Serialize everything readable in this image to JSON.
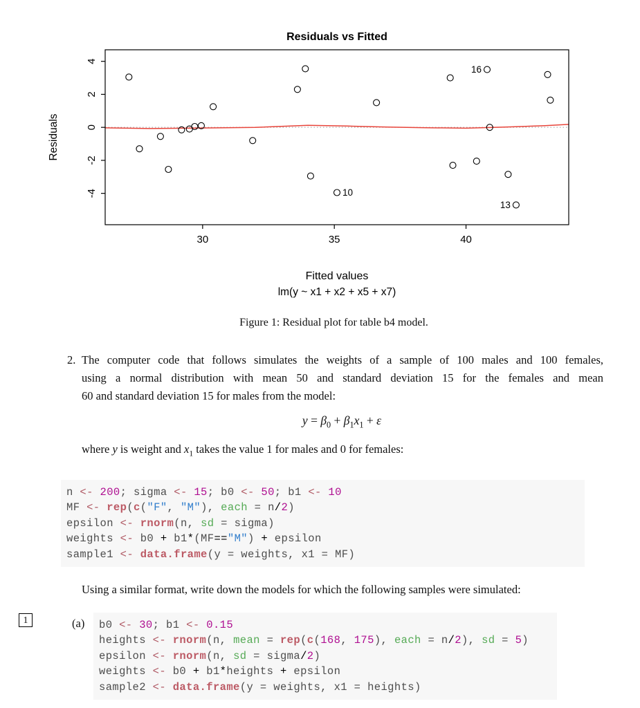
{
  "colors": {
    "text": "#111111",
    "std": "#4d4d4d",
    "num": "#AF0F91",
    "str": "#317ECC",
    "fun": "#BC5A65",
    "arg": "#55AA55",
    "kwb": "#B05A65",
    "opt": "#000000",
    "code_bg": "#F7F7F7"
  },
  "figure": {
    "caption": "Figure 1: Residual plot for table b4 model."
  },
  "chart_data": {
    "type": "scatter",
    "title": "Residuals vs Fitted",
    "xlabel": "Fitted values",
    "sublabel": "lm(y ~ x1 + x2 + x5 + x7)",
    "ylabel": "Residuals",
    "xlim": [
      26.3,
      43.9
    ],
    "ylim": [
      -5.9,
      4.7
    ],
    "xticks": [
      30,
      35,
      40
    ],
    "yticks": [
      -4,
      -2,
      0,
      2,
      4
    ],
    "grid": false,
    "legend": "none",
    "points": [
      [
        27.2,
        3.05
      ],
      [
        27.6,
        -1.3
      ],
      [
        28.4,
        -0.55
      ],
      [
        28.7,
        -2.55
      ],
      [
        29.2,
        -0.15
      ],
      [
        29.5,
        -0.1
      ],
      [
        29.7,
        0.05
      ],
      [
        29.95,
        0.1
      ],
      [
        30.4,
        1.25
      ],
      [
        31.9,
        -0.8
      ],
      [
        33.6,
        2.3
      ],
      [
        33.9,
        3.55
      ],
      [
        34.1,
        -2.95
      ],
      [
        35.1,
        -3.95
      ],
      [
        36.6,
        1.5
      ],
      [
        39.4,
        3.0
      ],
      [
        39.5,
        -2.3
      ],
      [
        40.4,
        -2.05
      ],
      [
        40.8,
        3.5
      ],
      [
        40.9,
        0.0
      ],
      [
        41.6,
        -2.85
      ],
      [
        41.9,
        -4.7
      ],
      [
        43.1,
        3.2
      ],
      [
        43.2,
        1.65
      ]
    ],
    "labeled_points": [
      {
        "x": 40.8,
        "y": 3.5,
        "label": "16",
        "side": "left"
      },
      {
        "x": 35.1,
        "y": -3.95,
        "label": "10",
        "side": "right"
      },
      {
        "x": 41.9,
        "y": -4.7,
        "label": "13",
        "side": "left"
      }
    ],
    "zero_line": {
      "y": 0,
      "color": "#9b9b9b"
    },
    "smooth_line": {
      "color": "#E8443A",
      "points": [
        [
          26.3,
          -0.03
        ],
        [
          28,
          -0.07
        ],
        [
          30,
          -0.04
        ],
        [
          32,
          0.0
        ],
        [
          34,
          0.12
        ],
        [
          35.5,
          0.08
        ],
        [
          37,
          0.02
        ],
        [
          38.5,
          -0.02
        ],
        [
          40,
          -0.05
        ],
        [
          41.5,
          0.02
        ],
        [
          43,
          0.1
        ],
        [
          43.9,
          0.18
        ]
      ]
    }
  },
  "question": {
    "number": "2.",
    "lines": [
      "The computer code that follows simulates the weights of a sample of 100 males and 100 females,",
      "using a normal distribution with mean 50 and standard deviation 15 for the females and mean",
      "60 and standard deviation 15 for males from the model:"
    ],
    "equation_tokens": [
      {
        "t": "y",
        "s": "var"
      },
      {
        "t": " = "
      },
      {
        "t": "β",
        "s": "var"
      },
      {
        "t": "0",
        "s": "sub"
      },
      {
        "t": " + "
      },
      {
        "t": "β",
        "s": "var"
      },
      {
        "t": "1",
        "s": "sub"
      },
      {
        "t": "x",
        "s": "var"
      },
      {
        "t": "1",
        "s": "sub"
      },
      {
        "t": " + "
      },
      {
        "t": "ε",
        "s": "var"
      }
    ],
    "where_tokens": [
      {
        "t": "where "
      },
      {
        "t": "y",
        "s": "var"
      },
      {
        "t": " is weight and "
      },
      {
        "t": "x",
        "s": "var"
      },
      {
        "t": "1",
        "s": "sub"
      },
      {
        "t": " takes the value 1 for males and 0 for females:"
      }
    ],
    "following_text": "Using a similar format, write down the models for which the following samples were simulated:"
  },
  "code_block_1": {
    "lines": [
      [
        {
          "t": "n ",
          "c": "std"
        },
        {
          "t": "<-",
          "c": "kwb"
        },
        {
          "t": " ",
          "c": "std"
        },
        {
          "t": "200",
          "c": "num"
        },
        {
          "t": "; sigma ",
          "c": "std"
        },
        {
          "t": "<-",
          "c": "kwb"
        },
        {
          "t": " ",
          "c": "std"
        },
        {
          "t": "15",
          "c": "num"
        },
        {
          "t": "; b0 ",
          "c": "std"
        },
        {
          "t": "<-",
          "c": "kwb"
        },
        {
          "t": " ",
          "c": "std"
        },
        {
          "t": "50",
          "c": "num"
        },
        {
          "t": "; b1 ",
          "c": "std"
        },
        {
          "t": "<-",
          "c": "kwb"
        },
        {
          "t": " ",
          "c": "std"
        },
        {
          "t": "10",
          "c": "num"
        }
      ],
      [
        {
          "t": "MF ",
          "c": "std"
        },
        {
          "t": "<-",
          "c": "kwb"
        },
        {
          "t": " ",
          "c": "std"
        },
        {
          "t": "rep",
          "c": "fun"
        },
        {
          "t": "(",
          "c": "std"
        },
        {
          "t": "c",
          "c": "fun"
        },
        {
          "t": "(",
          "c": "std"
        },
        {
          "t": "\"F\"",
          "c": "str"
        },
        {
          "t": ", ",
          "c": "std"
        },
        {
          "t": "\"M\"",
          "c": "str"
        },
        {
          "t": "), ",
          "c": "std"
        },
        {
          "t": "each",
          "c": "arg"
        },
        {
          "t": " = n",
          "c": "std"
        },
        {
          "t": "/",
          "c": "opt"
        },
        {
          "t": "2",
          "c": "num"
        },
        {
          "t": ")",
          "c": "std"
        }
      ],
      [
        {
          "t": "epsilon ",
          "c": "std"
        },
        {
          "t": "<-",
          "c": "kwb"
        },
        {
          "t": " ",
          "c": "std"
        },
        {
          "t": "rnorm",
          "c": "fun"
        },
        {
          "t": "(n, ",
          "c": "std"
        },
        {
          "t": "sd",
          "c": "arg"
        },
        {
          "t": " = sigma)",
          "c": "std"
        }
      ],
      [
        {
          "t": "weights ",
          "c": "std"
        },
        {
          "t": "<-",
          "c": "kwb"
        },
        {
          "t": " b0 ",
          "c": "std"
        },
        {
          "t": "+",
          "c": "opt"
        },
        {
          "t": " b1",
          "c": "std"
        },
        {
          "t": "*",
          "c": "opt"
        },
        {
          "t": "(MF",
          "c": "std"
        },
        {
          "t": "==",
          "c": "opt"
        },
        {
          "t": "\"M\"",
          "c": "str"
        },
        {
          "t": ") ",
          "c": "std"
        },
        {
          "t": "+",
          "c": "opt"
        },
        {
          "t": " epsilon",
          "c": "std"
        }
      ],
      [
        {
          "t": "sample1 ",
          "c": "std"
        },
        {
          "t": "<-",
          "c": "kwb"
        },
        {
          "t": " ",
          "c": "std"
        },
        {
          "t": "data.frame",
          "c": "fun"
        },
        {
          "t": "(y = weights, x1 = MF)",
          "c": "std"
        }
      ]
    ]
  },
  "part_a": {
    "margin_badge": "1",
    "label": "(a)",
    "code_block": {
      "lines": [
        [
          {
            "t": "b0 ",
            "c": "std"
          },
          {
            "t": "<-",
            "c": "kwb"
          },
          {
            "t": " ",
            "c": "std"
          },
          {
            "t": "30",
            "c": "num"
          },
          {
            "t": "; b1 ",
            "c": "std"
          },
          {
            "t": "<-",
            "c": "kwb"
          },
          {
            "t": " ",
            "c": "std"
          },
          {
            "t": "0.15",
            "c": "num"
          }
        ],
        [
          {
            "t": "heights ",
            "c": "std"
          },
          {
            "t": "<-",
            "c": "kwb"
          },
          {
            "t": " ",
            "c": "std"
          },
          {
            "t": "rnorm",
            "c": "fun"
          },
          {
            "t": "(n, ",
            "c": "std"
          },
          {
            "t": "mean",
            "c": "arg"
          },
          {
            "t": " = ",
            "c": "std"
          },
          {
            "t": "rep",
            "c": "fun"
          },
          {
            "t": "(",
            "c": "std"
          },
          {
            "t": "c",
            "c": "fun"
          },
          {
            "t": "(",
            "c": "std"
          },
          {
            "t": "168",
            "c": "num"
          },
          {
            "t": ", ",
            "c": "std"
          },
          {
            "t": "175",
            "c": "num"
          },
          {
            "t": "), ",
            "c": "std"
          },
          {
            "t": "each",
            "c": "arg"
          },
          {
            "t": " = n",
            "c": "std"
          },
          {
            "t": "/",
            "c": "opt"
          },
          {
            "t": "2",
            "c": "num"
          },
          {
            "t": "), ",
            "c": "std"
          },
          {
            "t": "sd",
            "c": "arg"
          },
          {
            "t": " = ",
            "c": "std"
          },
          {
            "t": "5",
            "c": "num"
          },
          {
            "t": ")",
            "c": "std"
          }
        ],
        [
          {
            "t": "epsilon ",
            "c": "std"
          },
          {
            "t": "<-",
            "c": "kwb"
          },
          {
            "t": " ",
            "c": "std"
          },
          {
            "t": "rnorm",
            "c": "fun"
          },
          {
            "t": "(n, ",
            "c": "std"
          },
          {
            "t": "sd",
            "c": "arg"
          },
          {
            "t": " = sigma",
            "c": "std"
          },
          {
            "t": "/",
            "c": "opt"
          },
          {
            "t": "2",
            "c": "num"
          },
          {
            "t": ")",
            "c": "std"
          }
        ],
        [
          {
            "t": "weights ",
            "c": "std"
          },
          {
            "t": "<-",
            "c": "kwb"
          },
          {
            "t": " b0 ",
            "c": "std"
          },
          {
            "t": "+",
            "c": "opt"
          },
          {
            "t": " b1",
            "c": "std"
          },
          {
            "t": "*",
            "c": "opt"
          },
          {
            "t": "heights ",
            "c": "std"
          },
          {
            "t": "+",
            "c": "opt"
          },
          {
            "t": " epsilon",
            "c": "std"
          }
        ],
        [
          {
            "t": "sample2 ",
            "c": "std"
          },
          {
            "t": "<-",
            "c": "kwb"
          },
          {
            "t": " ",
            "c": "std"
          },
          {
            "t": "data.frame",
            "c": "fun"
          },
          {
            "t": "(y = weights, x1 = heights)",
            "c": "std"
          }
        ]
      ]
    }
  }
}
